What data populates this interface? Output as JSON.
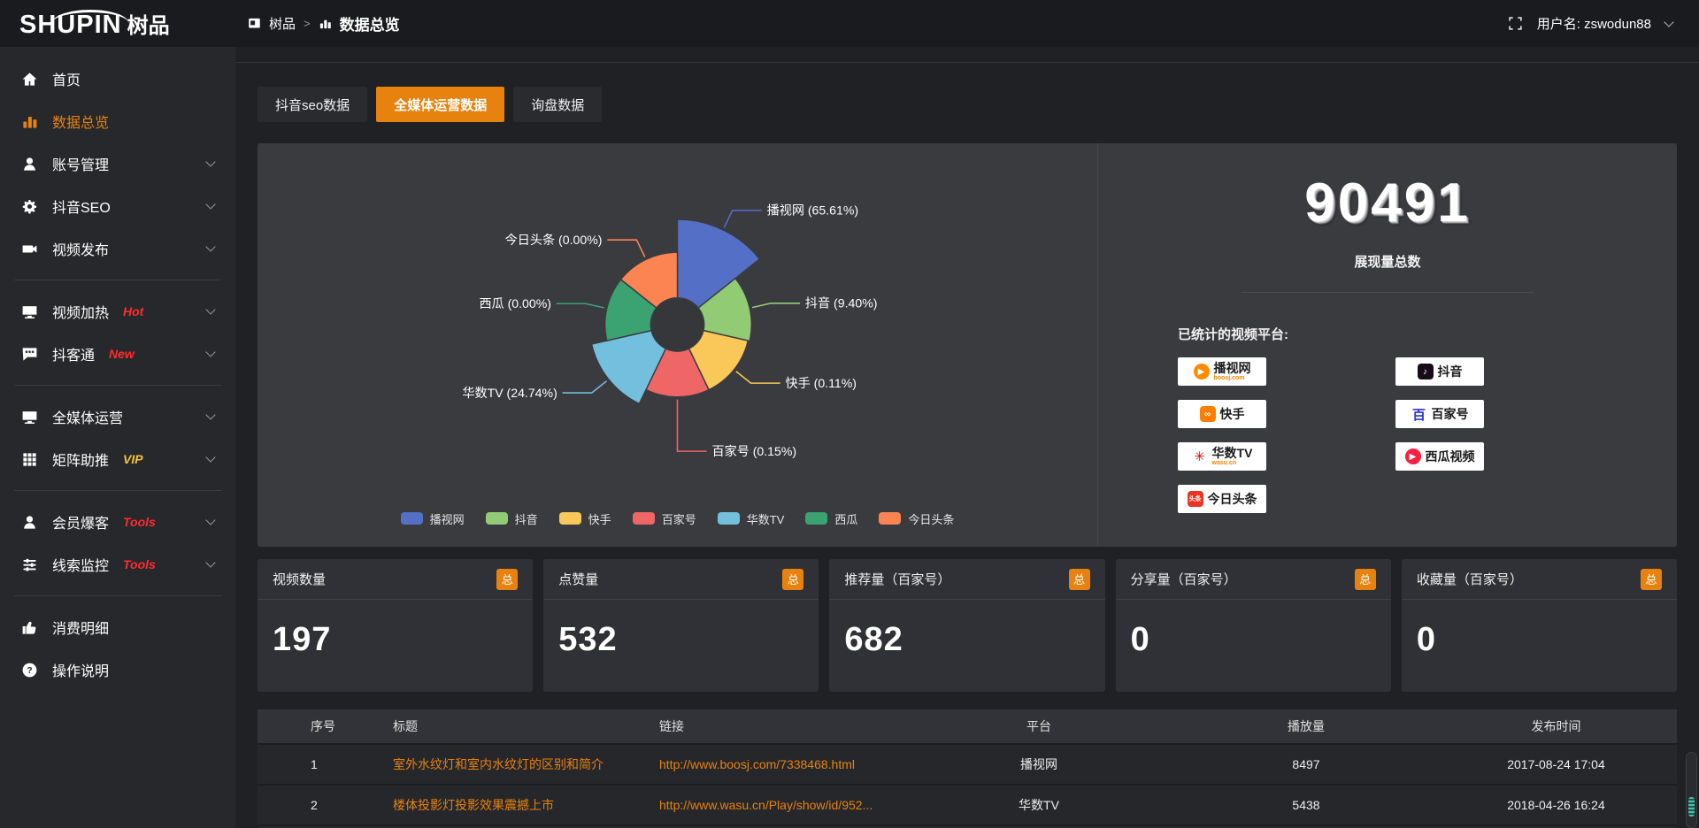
{
  "header": {
    "logo_text": "SHUPIN",
    "logo_cn": "树品",
    "breadcrumb": {
      "root": "树品",
      "sep": ">",
      "current": "数据总览"
    },
    "user_label": "用户名: zswodun88"
  },
  "sidebar": {
    "items": [
      {
        "label": "首页",
        "icon": "home-icon"
      },
      {
        "label": "数据总览",
        "icon": "bar-chart-icon",
        "active": true
      },
      {
        "label": "账号管理",
        "icon": "user-icon",
        "chevron": true
      },
      {
        "label": "抖音SEO",
        "icon": "gear-icon",
        "chevron": true
      },
      {
        "label": "视频发布",
        "icon": "video-camera-icon",
        "chevron": true,
        "divider_after": true
      },
      {
        "label": "视频加热",
        "icon": "monitor-icon",
        "badge": "Hot",
        "badge_color": "#ff2d2d",
        "chevron": true
      },
      {
        "label": "抖客通",
        "icon": "chat-icon",
        "badge": "New",
        "badge_color": "#ff2d2d",
        "chevron": true,
        "divider_after": true
      },
      {
        "label": "全媒体运营",
        "icon": "monitor-icon",
        "chevron": true
      },
      {
        "label": "矩阵助推",
        "icon": "grid-icon",
        "badge": "VIP",
        "badge_color": "#f5c242",
        "chevron": true,
        "divider_after": true
      },
      {
        "label": "会员爆客",
        "icon": "user-icon",
        "badge": "Tools",
        "badge_color": "#ff2d2d",
        "chevron": true
      },
      {
        "label": "线索监控",
        "icon": "sliders-icon",
        "badge": "Tools",
        "badge_color": "#ff2d2d",
        "chevron": true,
        "divider_after": true
      },
      {
        "label": "消费明细",
        "icon": "thumb-icon"
      },
      {
        "label": "操作说明",
        "icon": "question-icon"
      }
    ]
  },
  "tabs": [
    {
      "label": "抖音seo数据",
      "active": false
    },
    {
      "label": "全媒体运营数据",
      "active": true
    },
    {
      "label": "询盘数据",
      "active": false
    }
  ],
  "chart_data": {
    "type": "pie",
    "variant": "nightingale-rose",
    "equal_angles": true,
    "start_angle_deg": -90,
    "inner_radius": 31,
    "legend_position": "bottom",
    "series": [
      {
        "name": "播视网",
        "percent": 65.61,
        "label": "播视网 (65.61%)",
        "color": "#5470c6",
        "radius": 122
      },
      {
        "name": "抖音",
        "percent": 9.4,
        "label": "抖音 (9.40%)",
        "color": "#91cc75",
        "radius": 86
      },
      {
        "name": "快手",
        "percent": 0.11,
        "label": "快手 (0.11%)",
        "color": "#fac858",
        "radius": 84
      },
      {
        "name": "百家号",
        "percent": 0.15,
        "label": "百家号 (0.15%)",
        "color": "#ee6666",
        "radius": 84,
        "label_ext": 60
      },
      {
        "name": "华数TV",
        "percent": 24.74,
        "label": "华数TV (24.74%)",
        "color": "#73c0de",
        "radius": 102
      },
      {
        "name": "西瓜",
        "percent": 0.0,
        "label": "西瓜 (0.00%)",
        "color": "#3ba272",
        "radius": 84
      },
      {
        "name": "今日头条",
        "percent": 0.0,
        "label": "今日头条 (0.00%)",
        "color": "#fc8452",
        "radius": 84
      }
    ]
  },
  "summary": {
    "total_value": "90491",
    "total_label": "展现量总数",
    "platforms_title": "已统计的视频平台:",
    "platforms_left": [
      {
        "name": "播视网",
        "sub": "boosj.com",
        "icon": "boosj-play-icon",
        "glyph": "▶",
        "style": "circle",
        "color": "#ff8a00",
        "fg": "#ffffff"
      },
      {
        "name": "快手",
        "sub": "",
        "icon": "kuaishou-icon",
        "glyph": "∞",
        "style": "square",
        "color": "#ff7e00",
        "fg": "#ffffff"
      },
      {
        "name": "华数TV",
        "sub": "wasu.cn",
        "icon": "wasu-burst-icon",
        "glyph": "✳",
        "style": "bare",
        "color": "",
        "fg": "#e60012"
      },
      {
        "name": "今日头条",
        "sub": "",
        "icon": "toutiao-icon",
        "glyph": "头条",
        "style": "square",
        "color": "#ed3321",
        "fg": "#ffffff"
      }
    ],
    "platforms_right": [
      {
        "name": "抖音",
        "sub": "",
        "icon": "douyin-icon",
        "glyph": "♪",
        "style": "square",
        "color": "#170b1a",
        "fg": "#ffffff"
      },
      {
        "name": "百家号",
        "sub": "",
        "icon": "baijiahao-icon",
        "glyph": "百",
        "style": "bare",
        "color": "",
        "fg": "#2932e1"
      },
      {
        "name": "西瓜视频",
        "sub": "",
        "icon": "xigua-play-icon",
        "glyph": "▶",
        "style": "circle",
        "color": "#fa1f41",
        "fg": "#ffffff"
      }
    ]
  },
  "stat_cards": [
    {
      "title": "视频数量",
      "badge": "总",
      "value": "197"
    },
    {
      "title": "点赞量",
      "badge": "总",
      "value": "532"
    },
    {
      "title": "推荐量（百家号）",
      "badge": "总",
      "value": "682"
    },
    {
      "title": "分享量（百家号）",
      "badge": "总",
      "value": "0"
    },
    {
      "title": "收藏量（百家号）",
      "badge": "总",
      "value": "0"
    }
  ],
  "table": {
    "columns": [
      "",
      "序号",
      "标题",
      "链接",
      "平台",
      "播放量",
      "发布时间"
    ],
    "rows": [
      {
        "seq": "1",
        "title": "室外水纹灯和室内水纹灯的区别和简介",
        "link": "http://www.boosj.com/7338468.html",
        "platform": "播视网",
        "plays": "8497",
        "time": "2017-08-24 17:04"
      },
      {
        "seq": "2",
        "title": "楼体投影灯投影效果震撼上市",
        "link": "http://www.wasu.cn/Play/show/id/952...",
        "platform": "华数TV",
        "plays": "5438",
        "time": "2018-04-26 16:24"
      }
    ]
  },
  "colors": {
    "accent": "#e8820e",
    "panel_bg": "#3a3b3f",
    "page_bg": "#202124",
    "sidebar_bg": "#27282b"
  }
}
